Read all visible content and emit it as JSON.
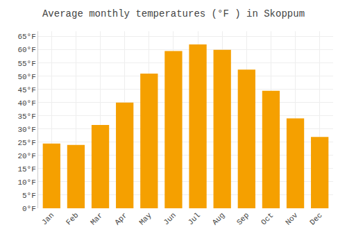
{
  "chart_data": {
    "type": "bar",
    "title": "Average monthly temperatures (°F ) in Skoppum",
    "categories": [
      "Jan",
      "Feb",
      "Mar",
      "Apr",
      "May",
      "Jun",
      "Jul",
      "Aug",
      "Sep",
      "Oct",
      "Nov",
      "Dec"
    ],
    "values": [
      24.5,
      24.0,
      31.5,
      40.0,
      51.0,
      59.5,
      62.0,
      60.0,
      52.5,
      44.5,
      34.0,
      27.0
    ],
    "color": "#F5A000",
    "ylim": [
      0,
      67
    ],
    "yticks": [
      {
        "value": 0,
        "label": "0°F"
      },
      {
        "value": 5,
        "label": "5°F"
      },
      {
        "value": 10,
        "label": "10°F"
      },
      {
        "value": 15,
        "label": "15°F"
      },
      {
        "value": 20,
        "label": "20°F"
      },
      {
        "value": 25,
        "label": "25°F"
      },
      {
        "value": 30,
        "label": "30°F"
      },
      {
        "value": 35,
        "label": "35°F"
      },
      {
        "value": 40,
        "label": "40°F"
      },
      {
        "value": 45,
        "label": "45°F"
      },
      {
        "value": 50,
        "label": "50°F"
      },
      {
        "value": 55,
        "label": "55°F"
      },
      {
        "value": 60,
        "label": "60°F"
      },
      {
        "value": 65,
        "label": "65°F"
      }
    ],
    "grid": true
  }
}
